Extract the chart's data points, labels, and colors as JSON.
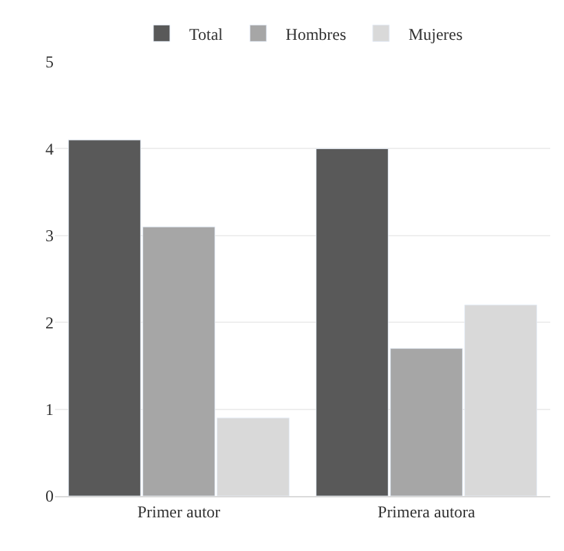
{
  "chart_data": {
    "type": "bar",
    "categories": [
      "Primer autor",
      "Primera autora"
    ],
    "series": [
      {
        "name": "Total",
        "color": "#595959",
        "values": [
          4.1,
          4.0
        ]
      },
      {
        "name": "Hombres",
        "color": "#a6a6a6",
        "values": [
          3.1,
          1.7
        ]
      },
      {
        "name": "Mujeres",
        "color": "#d9d9d9",
        "values": [
          0.9,
          2.2
        ]
      }
    ],
    "ylim": [
      0,
      5
    ],
    "yticks": [
      0,
      1,
      2,
      3,
      4,
      5
    ],
    "grid": "y",
    "legend": "top"
  }
}
